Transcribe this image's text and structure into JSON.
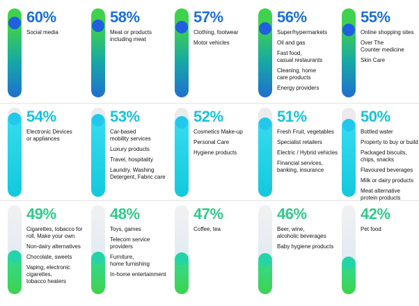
{
  "colors": {
    "row1_text": "#1a6fd8",
    "row2_text": "#18c2d8",
    "row3_text": "#2ecb8a",
    "row1_fill": [
      "#1f6fd1",
      "#16a8a5",
      "#3fd24d"
    ],
    "row2_fill": [
      "#12c9dc",
      "#39dcf0"
    ],
    "row3_fill": [
      "#3fd24d",
      "#2fdc9c",
      "#d7e7f4"
    ],
    "row1_dot": "#1f5fe0",
    "row2_dot": "#22c8ec",
    "row3_dot": "#24d3a8"
  },
  "chart_data": {
    "type": "bar",
    "categories": [
      "Social media",
      "Meat or products including meat",
      "Clothing, footwear",
      "Super/hypermarkets",
      "Online shopping sites",
      "Electronic Devices or appliances",
      "Car-based mobility services",
      "Cosmetics Make-up",
      "Fresh Fruit, vegetables",
      "Bottled water",
      "Cigarettes, tobacco for roll, Make your own",
      "Toys, games",
      "Coffee, tea",
      "Beer, wine, alcoholic beverages",
      "Pet food"
    ],
    "values": [
      60,
      58,
      57,
      56,
      55,
      54,
      53,
      52,
      51,
      50,
      49,
      48,
      47,
      46,
      42
    ],
    "ylim": [
      0,
      100
    ],
    "panels": [
      {
        "label": "60%",
        "value": 60,
        "row": 1,
        "items": [
          "Social media"
        ]
      },
      {
        "label": "58%",
        "value": 58,
        "row": 1,
        "items": [
          "Meat or products\nincluding meat"
        ]
      },
      {
        "label": "57%",
        "value": 57,
        "row": 1,
        "items": [
          "Clothing, footwear",
          "Motor vehicles"
        ]
      },
      {
        "label": "56%",
        "value": 56,
        "row": 1,
        "items": [
          "Super/hypermarkets",
          "Oil and gas",
          "Fast food,\ncasual restaurants",
          "Cleaning, home\ncare products",
          "Energy providers"
        ]
      },
      {
        "label": "55%",
        "value": 55,
        "row": 1,
        "items": [
          "Online shopping sites",
          "Over The\nCounter medicine",
          "Skin Care"
        ]
      },
      {
        "label": "54%",
        "value": 54,
        "row": 2,
        "items": [
          "Electronic Devices\nor appliances"
        ]
      },
      {
        "label": "53%",
        "value": 53,
        "row": 2,
        "items": [
          "Car-based\nmobility services",
          "Luxury products",
          "Travel, hospitality",
          "Laundry, Washing\nDetergent, Fabric care"
        ]
      },
      {
        "label": "52%",
        "value": 52,
        "row": 2,
        "items": [
          "Cosmetics Make-up",
          "Personal Care",
          "Hygiene products"
        ]
      },
      {
        "label": "51%",
        "value": 51,
        "row": 2,
        "items": [
          "Fresh Fruit, vegetables",
          "Specialist retailers",
          "Electric / Hybrid vehicles",
          "Financial services,\nbanking, insurance"
        ]
      },
      {
        "label": "50%",
        "value": 50,
        "row": 2,
        "items": [
          "Bottled water",
          "Property to buy or build",
          "Packaged biscuits,\nchips, snacks",
          "Flavoured beverages",
          "Milk or dairy products",
          "Meat alternative\nprotein products"
        ]
      },
      {
        "label": "49%",
        "value": 49,
        "row": 3,
        "items": [
          "Cigarettes, tobacco for\nroll, Make your own",
          "Non-dairy alternatives",
          "Chocolate, sweets",
          "Vaping, electronic\ncigarettes,\ntobacco heaters"
        ]
      },
      {
        "label": "48%",
        "value": 48,
        "row": 3,
        "items": [
          "Toys, games",
          "Telecom service\nproviders",
          "Furniture,\nhome furnishing",
          "In-home entertainment"
        ]
      },
      {
        "label": "47%",
        "value": 47,
        "row": 3,
        "items": [
          "Coffee, tea"
        ]
      },
      {
        "label": "46%",
        "value": 46,
        "row": 3,
        "items": [
          "Beer, wine,\nalcoholic beverages",
          "Baby hygiene products"
        ]
      },
      {
        "label": "42%",
        "value": 42,
        "row": 3,
        "items": [
          "Pet food"
        ]
      }
    ]
  }
}
